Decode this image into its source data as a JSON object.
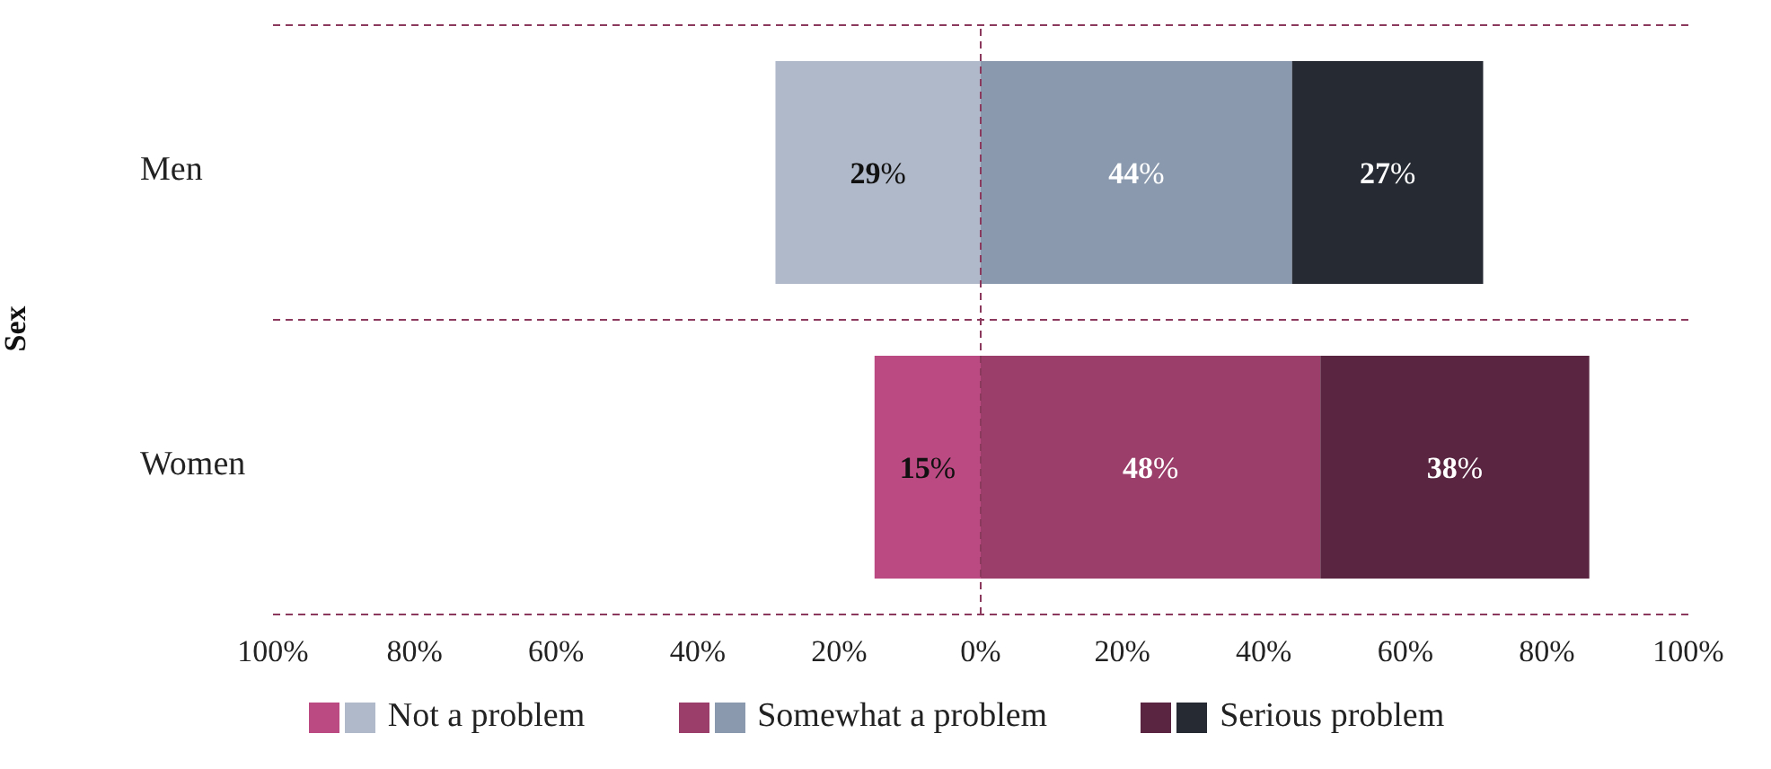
{
  "chart_data": {
    "type": "bar",
    "orientation": "horizontal",
    "ylabel": "Sex",
    "categories": [
      "Men",
      "Women"
    ],
    "series": [
      {
        "name": "Not a problem",
        "colors": [
          "#b0b9c9",
          "#bb4a82"
        ],
        "values": [
          29,
          15
        ],
        "base": [
          -29,
          -15
        ],
        "value_labels": [
          "29%",
          "15%"
        ]
      },
      {
        "name": "Somewhat a problem",
        "colors": [
          "#8a99ae",
          "#9b3f6a"
        ],
        "values": [
          44,
          48
        ],
        "base": [
          0,
          0
        ],
        "value_labels": [
          "44%",
          "48%"
        ]
      },
      {
        "name": "Serious problem",
        "colors": [
          "#252a33",
          "#5a2541"
        ],
        "values": [
          27,
          38
        ],
        "base": [
          44,
          48
        ],
        "value_labels": [
          "27%",
          "38%"
        ]
      }
    ],
    "xlim": [
      -100,
      100
    ],
    "xticks": [
      {
        "value": -100,
        "label": "100%"
      },
      {
        "value": -80,
        "label": "80%"
      },
      {
        "value": -60,
        "label": "60%"
      },
      {
        "value": -40,
        "label": "40%"
      },
      {
        "value": -20,
        "label": "20%"
      },
      {
        "value": 0,
        "label": "0%"
      },
      {
        "value": 20,
        "label": "20%"
      },
      {
        "value": 40,
        "label": "40%"
      },
      {
        "value": 60,
        "label": "60%"
      },
      {
        "value": 80,
        "label": "80%"
      },
      {
        "value": 100,
        "label": "100%"
      }
    ],
    "ref_lines": [
      {
        "axis": "x",
        "value": 0,
        "color": "#8b3a5e",
        "line_style": "dashed"
      }
    ],
    "grid": "y",
    "legend": "bottom"
  }
}
